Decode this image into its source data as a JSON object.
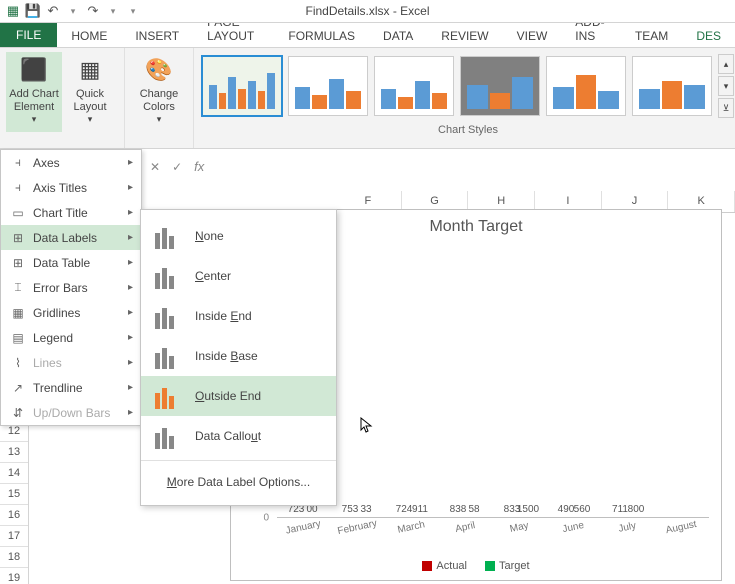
{
  "window": {
    "title": "FindDetails.xlsx - Excel"
  },
  "qat": {
    "save": "💾",
    "undo": "↶",
    "redo": "↷"
  },
  "tabs": [
    "FILE",
    "HOME",
    "INSERT",
    "PAGE LAYOUT",
    "FORMULAS",
    "DATA",
    "REVIEW",
    "VIEW",
    "ADD-INS",
    "TEAM",
    "DES"
  ],
  "ribbon": {
    "addChart": "Add Chart Element",
    "quickLayout": "Quick Layout",
    "changeColors": "Change Colors",
    "stylesLabel": "Chart Styles"
  },
  "menu": {
    "items": [
      {
        "label": "Axes",
        "disabled": false
      },
      {
        "label": "Axis Titles",
        "disabled": false
      },
      {
        "label": "Chart Title",
        "disabled": false
      },
      {
        "label": "Data Labels",
        "disabled": false,
        "hl": true
      },
      {
        "label": "Data Table",
        "disabled": false
      },
      {
        "label": "Error Bars",
        "disabled": false
      },
      {
        "label": "Gridlines",
        "disabled": false
      },
      {
        "label": "Legend",
        "disabled": false
      },
      {
        "label": "Lines",
        "disabled": true
      },
      {
        "label": "Trendline",
        "disabled": false
      },
      {
        "label": "Up/Down Bars",
        "disabled": true
      }
    ],
    "sub": {
      "none": "None",
      "center": "Center",
      "insideEnd": "Inside End",
      "insideBase": "Inside Base",
      "outsideEnd": "Outside End",
      "dataCallout": "Data Callout",
      "more": "More Data Label Options..."
    }
  },
  "colHeaders": [
    "F",
    "G",
    "H",
    "I",
    "J",
    "K"
  ],
  "rowStart": 10,
  "rowEnd": 20,
  "chart": {
    "title": "Month Target",
    "categories": [
      "January",
      "February",
      "March",
      "April",
      "May",
      "June",
      "July",
      "August"
    ],
    "series": [
      {
        "name": "Actual",
        "color": "#c00000",
        "values": [
          723,
          753,
          724,
          838,
          833,
          490,
          711,
          0
        ]
      },
      {
        "name": "Target",
        "color": "#00b050",
        "values": [
          400,
          433,
          911,
          458,
          1500,
          560,
          800,
          0
        ]
      }
    ],
    "actual_color": "#c00000",
    "target_color": "#00b050",
    "june_target_color": "#2e75b6",
    "data": [
      {
        "cat": "January",
        "actual": 723,
        "target": 400
      },
      {
        "cat": "February",
        "actual": 753,
        "target": 433
      },
      {
        "cat": "March",
        "actual": 724,
        "target": 911
      },
      {
        "cat": "April",
        "actual": 838,
        "target": 458
      },
      {
        "cat": "May",
        "actual": 833,
        "target": 1500
      },
      {
        "cat": "June",
        "actual": 490,
        "target": 560
      },
      {
        "cat": "July",
        "actual": 711,
        "target": 800
      }
    ],
    "visibleLabels": {
      "jan": [
        "723",
        "00"
      ],
      "feb": [
        "753",
        "33"
      ],
      "mar": [
        "724",
        "911"
      ],
      "apr": [
        "838",
        "58"
      ],
      "may": [
        "833",
        "1500"
      ],
      "jun": [
        "490",
        "560"
      ],
      "jul": [
        "711",
        "800"
      ]
    },
    "ymax": 1600,
    "ytick": "0",
    "background": "#ffffff",
    "border": "#bfbfbf",
    "title_fontsize": 16,
    "label_fontsize": 10
  },
  "colors": {
    "excel_green": "#217346",
    "hover_green": "#d1e8d5",
    "selection_blue": "#2a8dd4",
    "ribbon_bg": "#f3f3f3"
  }
}
